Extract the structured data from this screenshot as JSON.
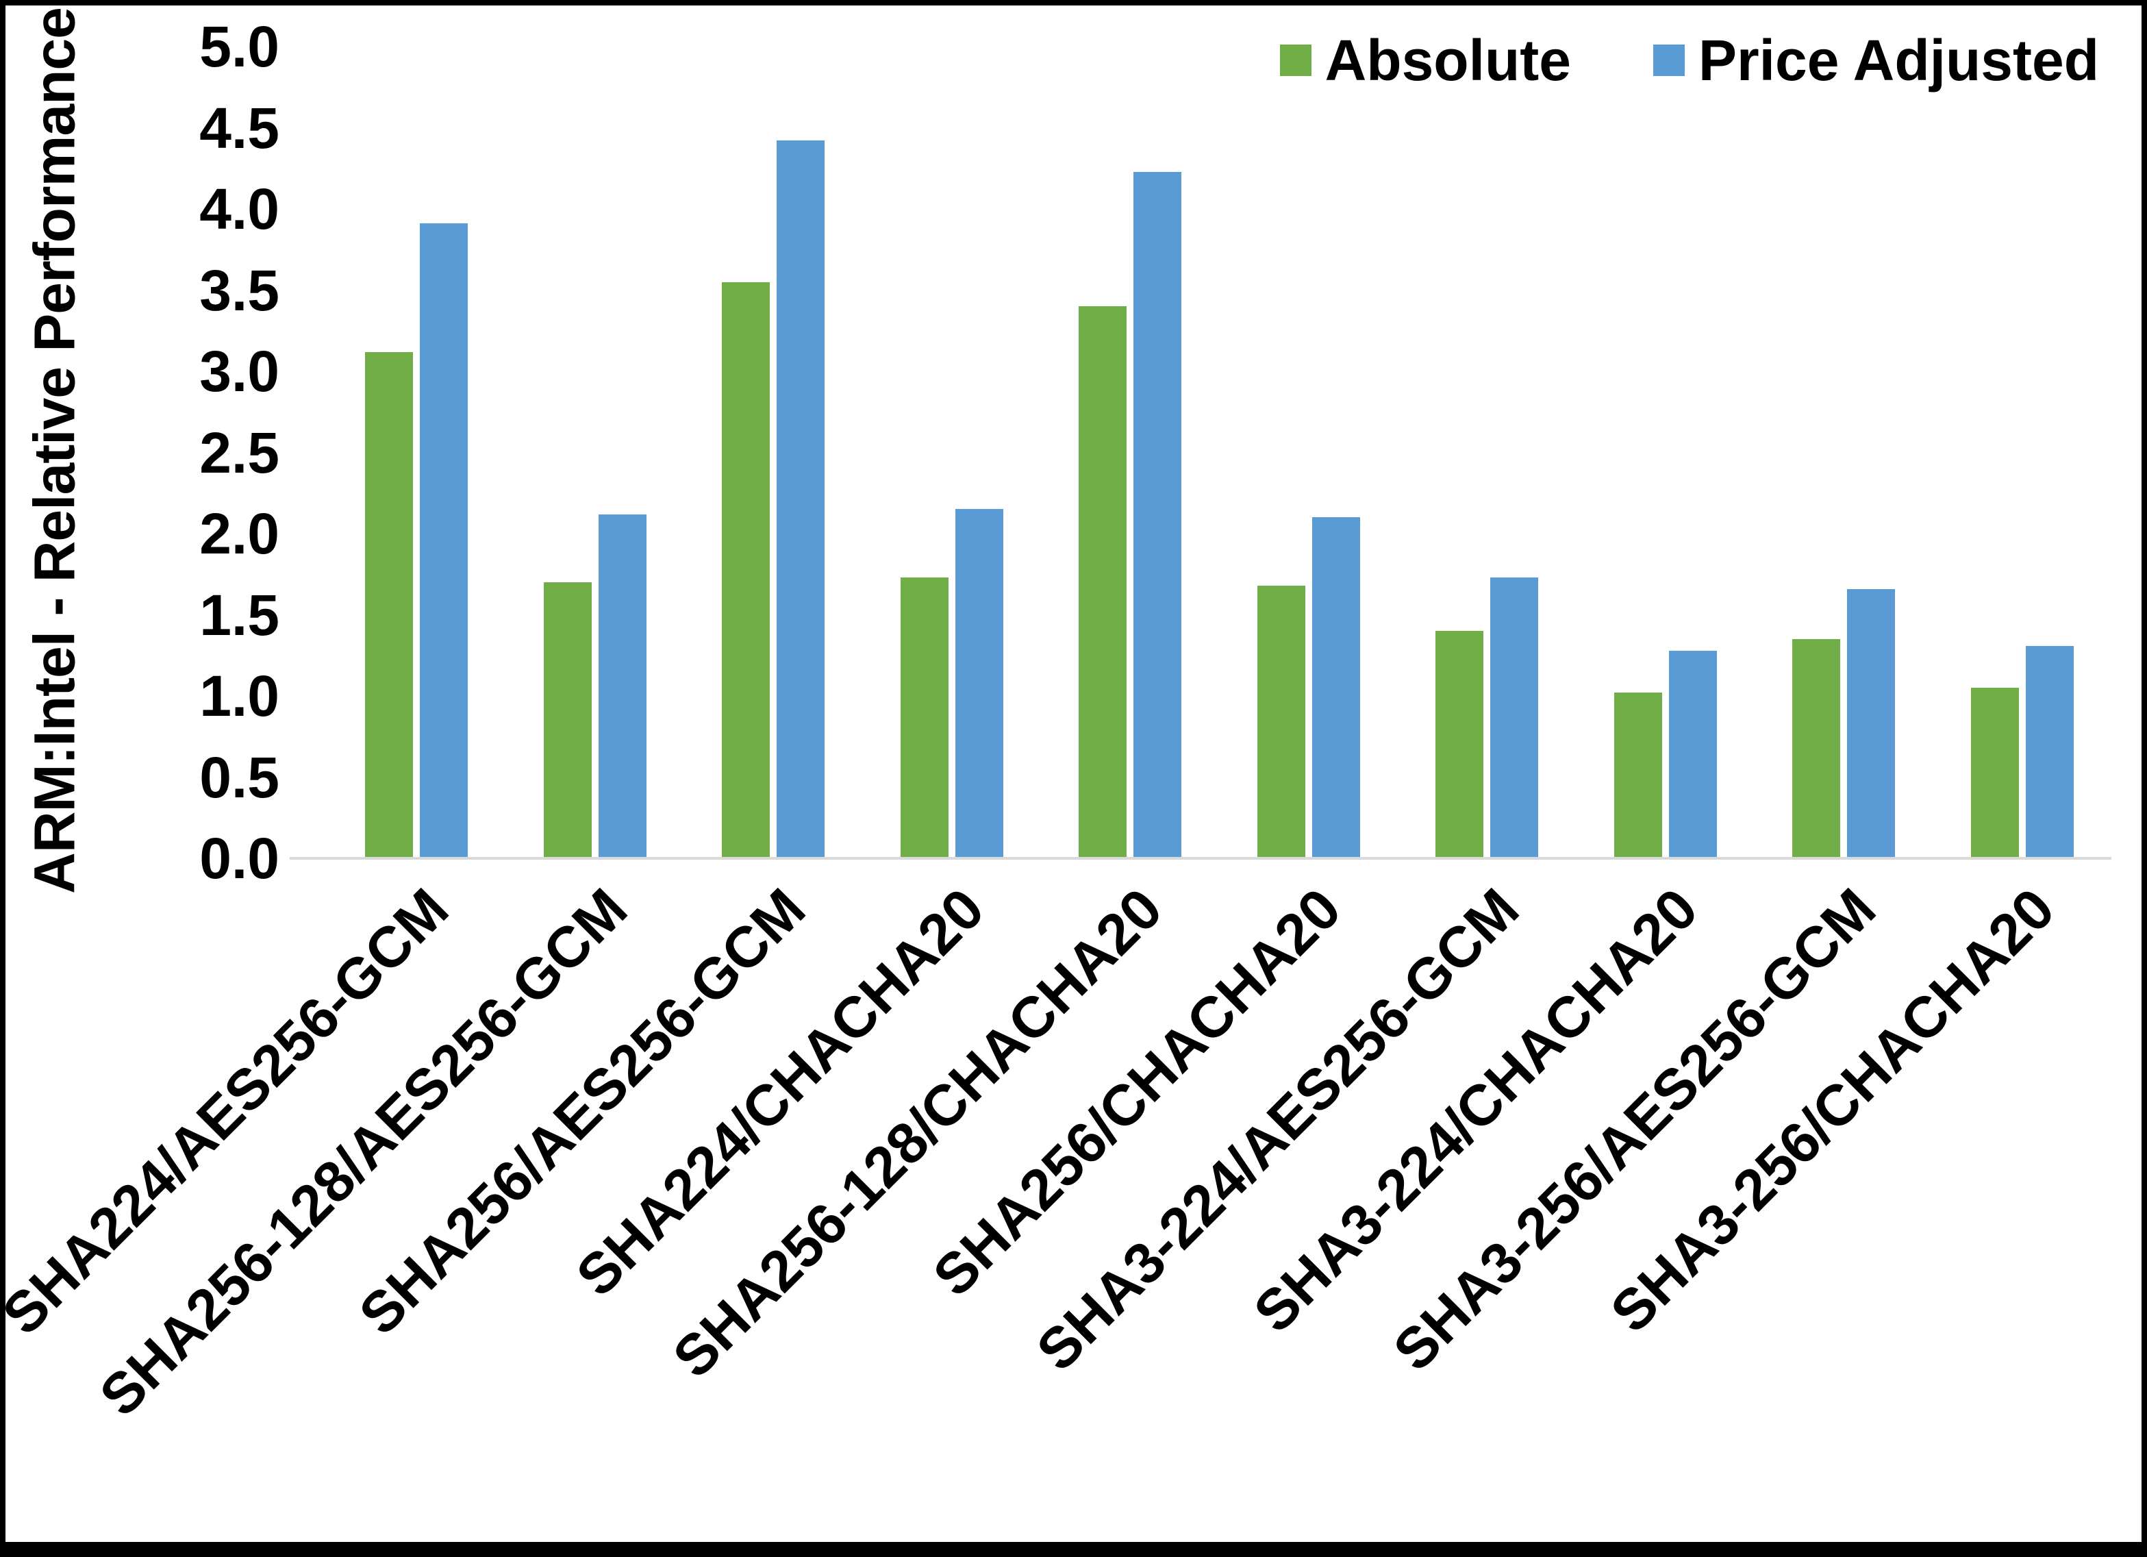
{
  "chart_data": {
    "type": "bar",
    "title": "",
    "xlabel": "",
    "ylabel": "ARM:Intel - Relative Performance",
    "ylim": [
      0.0,
      5.0
    ],
    "ytick_labels_top_to_bottom": [
      "5.0",
      "4.5",
      "4.0",
      "3.5",
      "3.0",
      "2.5",
      "2.0",
      "1.5",
      "1.0",
      "0.5",
      "0.0"
    ],
    "grid": false,
    "legend_position": "top-right",
    "categories": [
      "SHA224/AES256-GCM",
      "SHA256-128/AES256-GCM",
      "SHA256/AES256-GCM",
      "SHA224/CHACHA20",
      "SHA256-128/CHACHA20",
      "SHA256/CHACHA20",
      "SHA3-224/AES256-GCM",
      "SHA3-224/CHACHA20",
      "SHA3-256/AES256-GCM",
      "SHA3-256/CHACHA20"
    ],
    "series": [
      {
        "name": "Absolute",
        "color": "#70AD47",
        "values": [
          3.12,
          1.7,
          3.55,
          1.73,
          3.4,
          1.68,
          1.4,
          1.02,
          1.35,
          1.05
        ]
      },
      {
        "name": "Price Adjusted",
        "color": "#5B9BD5",
        "values": [
          3.91,
          2.12,
          4.42,
          2.15,
          4.23,
          2.1,
          1.73,
          1.28,
          1.66,
          1.31
        ]
      }
    ]
  },
  "colors": {
    "background": "#ffffff",
    "border": "#000000",
    "axis_baseline": "#d9d9d9",
    "text": "#000000"
  }
}
